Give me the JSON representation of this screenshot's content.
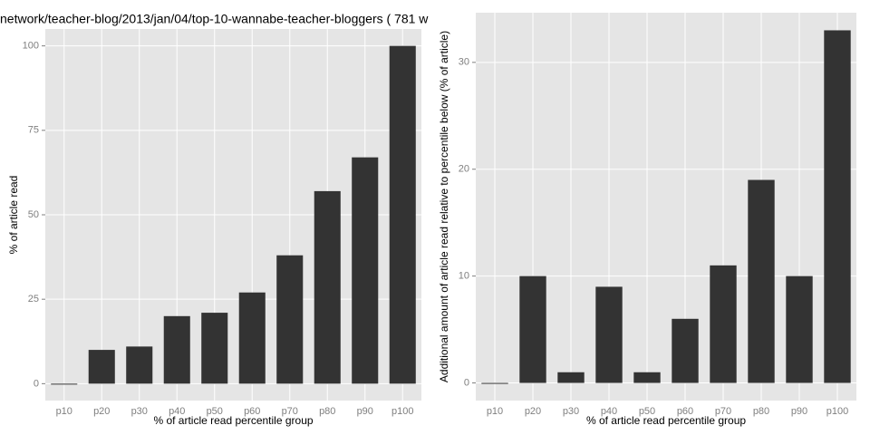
{
  "chart_data": [
    {
      "type": "bar",
      "title": "network/teacher-blog/2013/jan/04/top-10-wannabe-teacher-bloggers ( 781 w",
      "x_label": "% of article read percentile group",
      "y_label": "% of article read",
      "categories": [
        "p10",
        "p20",
        "p30",
        "p40",
        "p50",
        "p60",
        "p70",
        "p80",
        "p90",
        "p100"
      ],
      "values": [
        0,
        10,
        11,
        20,
        21,
        27,
        38,
        57,
        67,
        100
      ],
      "color": "#333333",
      "ylim": [
        -5,
        105
      ],
      "yticks": [
        0,
        25,
        50,
        75,
        100
      ],
      "grid": true
    },
    {
      "type": "bar",
      "x_label": "% of article read percentile group",
      "y_label": "Additional amount of article read relative to percentile below (% of article)",
      "categories": [
        "p10",
        "p20",
        "p30",
        "p40",
        "p50",
        "p60",
        "p70",
        "p80",
        "p90",
        "p100"
      ],
      "values": [
        0,
        10,
        1,
        9,
        1,
        6,
        11,
        19,
        10,
        33
      ],
      "color": "#333333",
      "ylim": [
        -1.65,
        34.65
      ],
      "yticks": [
        0,
        10,
        20,
        30
      ],
      "grid": true
    }
  ]
}
